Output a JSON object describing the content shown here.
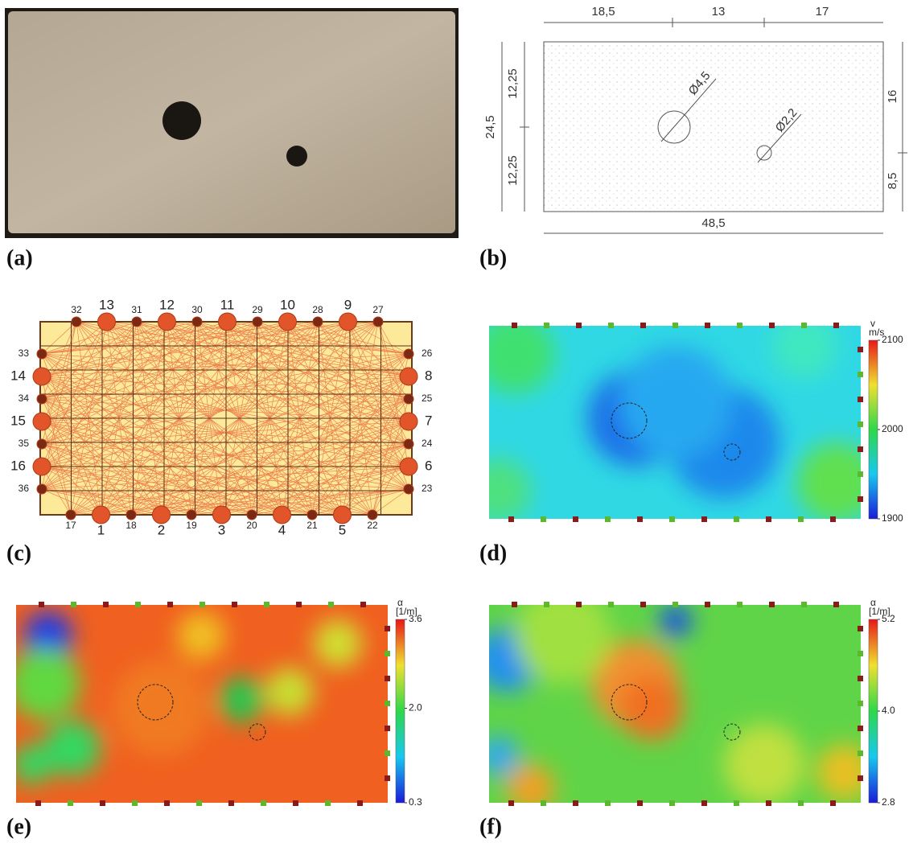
{
  "panels": [
    {
      "label": "(a)"
    },
    {
      "label": "(b)"
    },
    {
      "label": "(c)"
    },
    {
      "label": "(d)"
    },
    {
      "label": "(e)"
    },
    {
      "label": "(f)"
    }
  ],
  "dimensions": {
    "top": [
      "18,5",
      "13",
      "17"
    ],
    "left_total": "24,5",
    "left": [
      "12,25",
      "12,25"
    ],
    "right": [
      "16",
      "8,5"
    ],
    "bottom": "48,5",
    "holes": [
      "Ø4,5",
      "Ø2,2"
    ]
  },
  "sensors": {
    "top": [
      "32",
      "13",
      "31",
      "12",
      "30",
      "11",
      "29",
      "10",
      "28",
      "9",
      "27"
    ],
    "left": [
      "33",
      "14",
      "34",
      "15",
      "35",
      "16",
      "36"
    ],
    "right": [
      "26",
      "8",
      "25",
      "7",
      "24",
      "6",
      "23"
    ],
    "bottom": [
      "17",
      "1",
      "18",
      "2",
      "19",
      "3",
      "20",
      "4",
      "21",
      "5",
      "22"
    ]
  },
  "colorbars": [
    {
      "title": "v",
      "unit": "m/s",
      "lim": [
        1900,
        2100
      ],
      "ticks": [
        2100,
        2000,
        1900
      ]
    },
    {
      "title": "α",
      "unit": "[1/m]",
      "lim": [
        0.3,
        3.6
      ],
      "ticks": [
        3.6,
        {
          "value": 2,
          "label": "2.0"
        },
        0.3
      ]
    },
    {
      "title": "α",
      "unit": "[1/m]",
      "lim": [
        2.8,
        5.2
      ],
      "ticks": [
        5.2,
        {
          "value": 4,
          "label": "4.0"
        },
        2.8
      ]
    }
  ]
}
